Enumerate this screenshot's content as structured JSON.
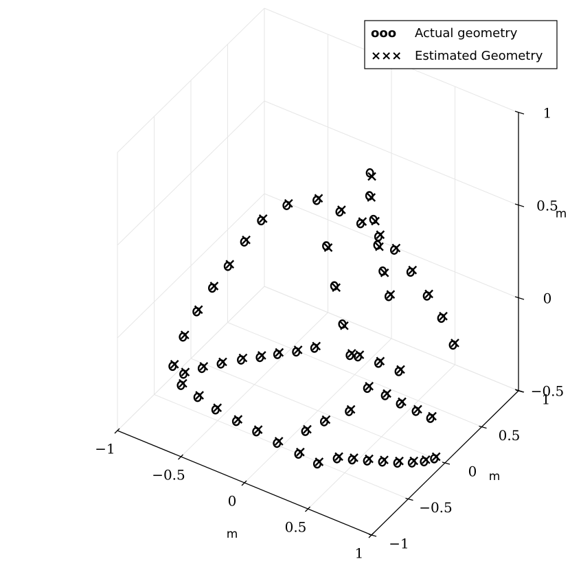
{
  "chart_data": {
    "type": "scatter",
    "projection": "3d",
    "axes": {
      "x": {
        "label": "m",
        "range": [
          -1,
          1
        ],
        "ticks": [
          -1,
          -0.5,
          0,
          0.5,
          1
        ],
        "tick_labels": [
          "−1",
          "−0.5",
          "0",
          "0.5",
          "1"
        ]
      },
      "y": {
        "label": "m",
        "range": [
          -1,
          1
        ],
        "ticks": [
          -1,
          -0.5,
          0,
          0.5,
          1
        ],
        "tick_labels": [
          "−1",
          "−0.5",
          "0",
          "0.5",
          "1"
        ]
      },
      "z": {
        "label": "m",
        "range": [
          -0.5,
          1
        ],
        "ticks": [
          -0.5,
          0,
          0.5,
          1
        ],
        "tick_labels": [
          "−0.5",
          "0",
          "0.5",
          "1"
        ]
      }
    },
    "grid": true,
    "legend": {
      "placement": "top-right",
      "entries": [
        {
          "label": "Actual geometry",
          "marker": "circle",
          "glyph": "ooo"
        },
        {
          "label": "Estimated Geometry",
          "marker": "x",
          "glyph": "×××"
        }
      ]
    },
    "series": [
      {
        "name": "Actual geometry",
        "marker": "circle",
        "points": [
          [
            0.37,
            -0.65,
            -0.43
          ],
          [
            0.21,
            -0.63,
            -0.43
          ],
          [
            0.03,
            -0.61,
            -0.43
          ],
          [
            -0.15,
            -0.58,
            -0.43
          ],
          [
            -0.32,
            -0.56,
            -0.43
          ],
          [
            -0.5,
            -0.53,
            -0.43
          ],
          [
            -0.67,
            -0.48,
            -0.43
          ],
          [
            -0.83,
            -0.43,
            -0.43
          ],
          [
            -0.88,
            -0.31,
            -0.43
          ],
          [
            -0.81,
            -0.18,
            -0.43
          ],
          [
            -0.73,
            -0.06,
            -0.43
          ],
          [
            -0.64,
            0.06,
            -0.43
          ],
          [
            -0.55,
            0.16,
            -0.43
          ],
          [
            -0.47,
            0.26,
            -0.43
          ],
          [
            -0.38,
            0.36,
            -0.43
          ],
          [
            -0.3,
            0.47,
            -0.43
          ],
          [
            0.22,
            0.29,
            -0.43
          ],
          [
            0.36,
            0.29,
            -0.43
          ],
          [
            0.49,
            0.27,
            -0.43
          ],
          [
            0.62,
            0.26,
            -0.43
          ],
          [
            0.74,
            0.25,
            -0.43
          ],
          [
            -0.01,
            0.56,
            -0.43
          ],
          [
            0.14,
            0.58,
            -0.43
          ],
          [
            0.3,
            0.58,
            -0.43
          ],
          [
            0.25,
            -0.01,
            -0.43
          ],
          [
            0.17,
            -0.21,
            -0.43
          ],
          [
            0.12,
            -0.38,
            -0.43
          ],
          [
            0.45,
            -0.52,
            -0.43
          ],
          [
            0.54,
            -0.47,
            -0.43
          ],
          [
            0.63,
            -0.42,
            -0.43
          ],
          [
            0.72,
            -0.37,
            -0.43
          ],
          [
            0.81,
            -0.32,
            -0.43
          ],
          [
            0.89,
            -0.26,
            -0.43
          ],
          [
            0.95,
            -0.2,
            -0.43
          ],
          [
            0.99,
            -0.13,
            -0.43
          ],
          [
            -0.89,
            -0.44,
            -0.34
          ],
          [
            -0.82,
            -0.42,
            -0.17
          ],
          [
            -0.73,
            -0.39,
            -0.02
          ],
          [
            -0.63,
            -0.35,
            0.12
          ],
          [
            -0.53,
            -0.31,
            0.25
          ],
          [
            -0.43,
            -0.26,
            0.39
          ],
          [
            -0.32,
            -0.22,
            0.52
          ],
          [
            -0.16,
            -0.15,
            0.62
          ],
          [
            0.03,
            -0.07,
            0.67
          ],
          [
            0.17,
            0.0,
            0.62
          ],
          [
            0.3,
            0.06,
            0.57
          ],
          [
            0.4,
            0.13,
            0.5
          ],
          [
            0.49,
            0.19,
            0.43
          ],
          [
            0.59,
            0.24,
            0.32
          ],
          [
            0.69,
            0.29,
            0.2
          ],
          [
            0.78,
            0.33,
            0.09
          ],
          [
            0.86,
            0.35,
            -0.04
          ],
          [
            0.16,
            0.43,
            0.66
          ],
          [
            0.15,
            0.44,
            0.53
          ],
          [
            0.17,
            0.46,
            0.4
          ],
          [
            0.19,
            0.48,
            0.26
          ],
          [
            0.22,
            0.5,
            0.12
          ],
          [
            0.25,
            0.53,
            -0.02
          ],
          [
            0.1,
            -0.06,
            0.44
          ],
          [
            0.14,
            -0.02,
            0.22
          ],
          [
            0.18,
            0.02,
            0.01
          ],
          [
            0.21,
            0.07,
            -0.17
          ]
        ]
      },
      {
        "name": "Estimated Geometry",
        "marker": "x",
        "points": [
          [
            0.38,
            -0.64,
            -0.42
          ],
          [
            0.22,
            -0.62,
            -0.42
          ],
          [
            0.04,
            -0.6,
            -0.42
          ],
          [
            -0.14,
            -0.57,
            -0.42
          ],
          [
            -0.31,
            -0.55,
            -0.42
          ],
          [
            -0.49,
            -0.52,
            -0.42
          ],
          [
            -0.66,
            -0.47,
            -0.42
          ],
          [
            -0.82,
            -0.42,
            -0.42
          ],
          [
            -0.87,
            -0.3,
            -0.42
          ],
          [
            -0.8,
            -0.17,
            -0.42
          ],
          [
            -0.72,
            -0.05,
            -0.42
          ],
          [
            -0.63,
            0.07,
            -0.42
          ],
          [
            -0.54,
            0.17,
            -0.42
          ],
          [
            -0.46,
            0.27,
            -0.42
          ],
          [
            -0.37,
            0.37,
            -0.42
          ],
          [
            -0.29,
            0.48,
            -0.42
          ],
          [
            0.23,
            0.3,
            -0.42
          ],
          [
            0.37,
            0.3,
            -0.42
          ],
          [
            0.5,
            0.28,
            -0.42
          ],
          [
            0.63,
            0.27,
            -0.42
          ],
          [
            0.75,
            0.26,
            -0.42
          ],
          [
            0.0,
            0.57,
            -0.42
          ],
          [
            0.15,
            0.59,
            -0.42
          ],
          [
            0.31,
            0.59,
            -0.42
          ],
          [
            0.26,
            0.0,
            -0.42
          ],
          [
            0.18,
            -0.2,
            -0.42
          ],
          [
            0.13,
            -0.37,
            -0.42
          ],
          [
            0.46,
            -0.51,
            -0.42
          ],
          [
            0.55,
            -0.46,
            -0.42
          ],
          [
            0.64,
            -0.41,
            -0.42
          ],
          [
            0.73,
            -0.36,
            -0.42
          ],
          [
            0.82,
            -0.31,
            -0.42
          ],
          [
            0.9,
            -0.25,
            -0.42
          ],
          [
            0.96,
            -0.19,
            -0.42
          ],
          [
            1.0,
            -0.12,
            -0.42
          ],
          [
            -0.88,
            -0.43,
            -0.33
          ],
          [
            -0.81,
            -0.41,
            -0.16
          ],
          [
            -0.72,
            -0.38,
            -0.01
          ],
          [
            -0.62,
            -0.34,
            0.13
          ],
          [
            -0.52,
            -0.3,
            0.26
          ],
          [
            -0.42,
            -0.25,
            0.4
          ],
          [
            -0.31,
            -0.21,
            0.53
          ],
          [
            -0.15,
            -0.14,
            0.63
          ],
          [
            0.04,
            -0.06,
            0.68
          ],
          [
            0.18,
            0.01,
            0.63
          ],
          [
            0.31,
            0.07,
            0.58
          ],
          [
            0.41,
            0.14,
            0.51
          ],
          [
            0.5,
            0.2,
            0.44
          ],
          [
            0.6,
            0.25,
            0.33
          ],
          [
            0.7,
            0.3,
            0.21
          ],
          [
            0.79,
            0.34,
            0.1
          ],
          [
            0.87,
            0.36,
            -0.03
          ],
          [
            0.17,
            0.44,
            0.64
          ],
          [
            0.16,
            0.45,
            0.52
          ],
          [
            0.18,
            0.47,
            0.39
          ],
          [
            0.2,
            0.49,
            0.25
          ],
          [
            0.23,
            0.51,
            0.11
          ],
          [
            0.26,
            0.54,
            -0.01
          ],
          [
            0.11,
            -0.05,
            0.43
          ],
          [
            0.15,
            -0.01,
            0.21
          ],
          [
            0.19,
            0.03,
            0.0
          ],
          [
            0.22,
            0.08,
            -0.16
          ]
        ]
      }
    ]
  }
}
